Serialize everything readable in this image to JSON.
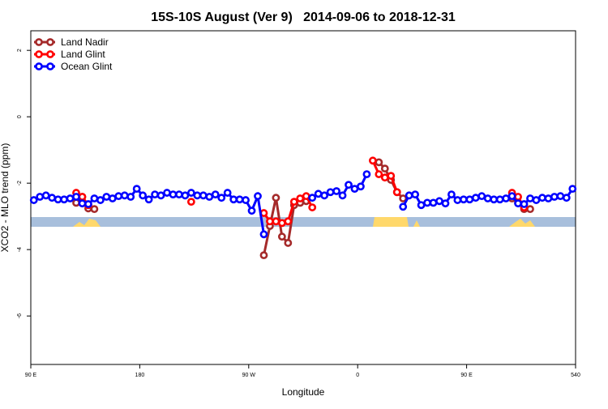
{
  "chart_data": {
    "type": "line",
    "title": "15S-10S August (Ver 9)   2014-09-06 to 2018-12-31",
    "x_label": "Longitude",
    "y_label": "XCO2 - MLO trend (ppm)",
    "xlim": [
      90,
      540
    ],
    "ylim": [
      -7.46,
      2.59
    ],
    "xticks": [
      {
        "value": 90,
        "label": "90 E"
      },
      180,
      {
        "value": 270,
        "label": "90 W"
      },
      {
        "value": 360,
        "label": "0"
      },
      {
        "value": 450,
        "label": "90 E"
      },
      540
    ],
    "yticks": [
      -6,
      -4,
      -2,
      0,
      2
    ],
    "legend": "top-left",
    "x": [
      92.5,
      97.5,
      102.5,
      107.5,
      112.5,
      117.5,
      122.5,
      127.5,
      132.5,
      137.5,
      142.5,
      147.5,
      152.5,
      157.5,
      162.5,
      167.5,
      172.5,
      177.5,
      182.5,
      187.5,
      192.5,
      197.5,
      202.5,
      207.5,
      212.5,
      217.5,
      222.5,
      227.5,
      232.5,
      237.5,
      242.5,
      247.5,
      252.5,
      257.5,
      262.5,
      267.5,
      272.5,
      277.5,
      282.5,
      287.5,
      292.5,
      297.5,
      302.5,
      307.5,
      312.5,
      317.5,
      322.5,
      327.5,
      332.5,
      337.5,
      342.5,
      347.5,
      352.5,
      357.5,
      362.5,
      367.5,
      372.5,
      377.5,
      382.5,
      387.5,
      392.5,
      397.5,
      402.5,
      407.5,
      412.5,
      417.5,
      422.5,
      427.5,
      432.5,
      437.5,
      442.5,
      447.5,
      452.5,
      457.5,
      462.5,
      467.5,
      472.5,
      477.5,
      482.5,
      487.5,
      492.5,
      497.5,
      502.5,
      507.5,
      512.5,
      517.5,
      522.5,
      527.5,
      532.5,
      537.5
    ],
    "series": [
      {
        "name": "Land Nadir",
        "color": "#a52a2a",
        "values": [
          null,
          null,
          null,
          null,
          null,
          null,
          null,
          -2.59,
          -2.41,
          -2.76,
          -2.78,
          null,
          null,
          null,
          null,
          null,
          null,
          null,
          null,
          null,
          null,
          null,
          null,
          null,
          null,
          null,
          null,
          null,
          null,
          null,
          null,
          null,
          null,
          null,
          null,
          null,
          null,
          null,
          -4.17,
          -3.29,
          -2.44,
          -3.61,
          -3.8,
          -2.66,
          -2.59,
          -2.54,
          null,
          null,
          null,
          null,
          null,
          null,
          null,
          null,
          null,
          null,
          null,
          -1.37,
          -1.56,
          -1.9,
          -2.27,
          -2.46,
          null,
          null,
          null,
          null,
          null,
          null,
          null,
          null,
          null,
          null,
          null,
          null,
          null,
          null,
          null,
          null,
          null,
          -2.46,
          -2.59,
          -2.78,
          -2.78,
          null,
          null,
          null,
          null,
          null,
          null,
          null
        ]
      },
      {
        "name": "Land Glint",
        "color": "#ff0000",
        "values": [
          null,
          null,
          null,
          null,
          null,
          null,
          null,
          -2.29,
          -2.41,
          -2.66,
          null,
          null,
          null,
          null,
          null,
          null,
          null,
          null,
          null,
          null,
          null,
          null,
          null,
          null,
          null,
          null,
          -2.56,
          null,
          null,
          null,
          null,
          null,
          null,
          null,
          null,
          null,
          null,
          null,
          -2.9,
          -3.15,
          -3.15,
          -3.2,
          -3.15,
          -2.56,
          -2.46,
          -2.39,
          -2.73,
          null,
          null,
          null,
          null,
          null,
          null,
          null,
          null,
          null,
          -1.32,
          -1.73,
          -1.83,
          -1.78,
          -2.27,
          null,
          null,
          null,
          null,
          null,
          null,
          null,
          null,
          null,
          null,
          null,
          null,
          null,
          null,
          null,
          null,
          null,
          null,
          -2.29,
          -2.41,
          -2.73,
          null,
          null,
          null,
          null,
          null,
          null,
          null,
          null
        ]
      },
      {
        "name": "Ocean Glint",
        "color": "#0000ff",
        "values": [
          -2.51,
          -2.41,
          -2.37,
          -2.44,
          -2.49,
          -2.49,
          -2.46,
          -2.41,
          -2.61,
          -2.63,
          -2.46,
          -2.51,
          -2.41,
          -2.46,
          -2.39,
          -2.37,
          -2.41,
          -2.17,
          -2.37,
          -2.49,
          -2.34,
          -2.37,
          -2.29,
          -2.34,
          -2.34,
          -2.37,
          -2.29,
          -2.37,
          -2.37,
          -2.41,
          -2.34,
          -2.44,
          -2.29,
          -2.49,
          -2.49,
          -2.51,
          -2.83,
          -2.39,
          -3.54,
          null,
          null,
          null,
          null,
          null,
          null,
          null,
          -2.44,
          -2.32,
          -2.37,
          -2.27,
          -2.24,
          -2.37,
          -2.05,
          -2.17,
          -2.1,
          -1.73,
          null,
          null,
          null,
          null,
          null,
          -2.71,
          -2.37,
          -2.34,
          -2.66,
          -2.59,
          -2.59,
          -2.54,
          -2.61,
          -2.34,
          -2.51,
          -2.49,
          -2.49,
          -2.44,
          -2.39,
          -2.46,
          -2.49,
          -2.49,
          -2.46,
          -2.39,
          -2.61,
          -2.63,
          -2.46,
          -2.51,
          -2.44,
          -2.46,
          -2.41,
          -2.39,
          -2.44,
          -2.17
        ]
      }
    ]
  }
}
